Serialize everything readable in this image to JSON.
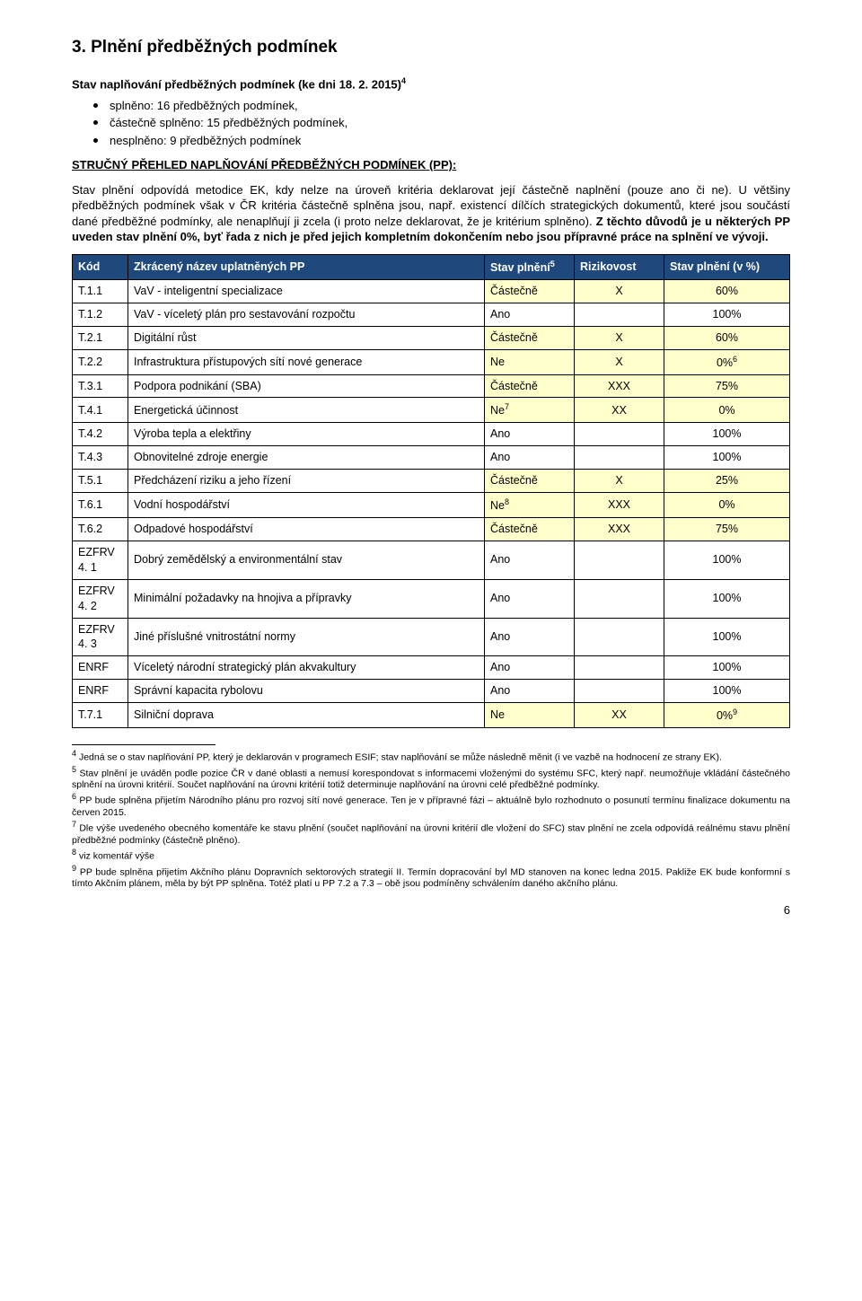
{
  "section": {
    "heading": "3. Plnění předběžných podmínek",
    "subheading_prefix": "Stav naplňování předběžných podmínek (ke dni 18. 2. 2015)",
    "subheading_sup": "4",
    "bullets": [
      "splněno: 16 předběžných podmínek,",
      "částečně splněno: 15 předběžných podmínek,",
      "nesplněno: 9 předběžných podmínek"
    ],
    "overview_title": "STRUČNÝ PŘEHLED NAPLŇOVÁNÍ PŘEDBĚŽNÝCH PODMÍNEK (PP):",
    "para1": "Stav plnění odpovídá metodice EK, kdy nelze na úroveň kritéria deklarovat její částečně naplnění (pouze ano či ne). U většiny předběžných podmínek však v ČR kritéria částečně splněna jsou, např. existencí dílčích strategických dokumentů, které jsou součástí dané předběžné podmínky, ale nenaplňují ji zcela (i proto nelze deklarovat, že je kritérium splněno). ",
    "para1_bold": "Z těchto důvodů je u některých PP uveden stav plnění 0%, byť řada z nich je před jejich kompletním dokončením nebo jsou přípravné práce na splnění ve vývoji."
  },
  "table": {
    "headers": {
      "code": "Kód",
      "name": "Zkrácený název uplatněných PP",
      "status": "Stav plnění",
      "status_sup": "5",
      "risk": "Rizikovost",
      "pct": "Stav plnění (v %)"
    },
    "rows": [
      {
        "code": "T.1.1",
        "name": "VaV - inteligentní specializace",
        "status": "Částečně",
        "risk": "X",
        "pct": "60%",
        "yellow": true
      },
      {
        "code": "T.1.2",
        "name": "VaV - víceletý plán pro sestavování rozpočtu",
        "status": "Ano",
        "risk": "",
        "pct": "100%",
        "yellow": false
      },
      {
        "code": "T.2.1",
        "name": "Digitální růst",
        "status": "Částečně",
        "risk": "X",
        "pct": "60%",
        "yellow": true
      },
      {
        "code": "T.2.2",
        "name": "Infrastruktura přístupových sítí nové generace",
        "status": "Ne",
        "risk": "X",
        "pct": "0%",
        "pct_sup": "6",
        "yellow": true
      },
      {
        "code": "T.3.1",
        "name": "Podpora podnikání (SBA)",
        "status": "Částečně",
        "risk": "XXX",
        "pct": "75%",
        "yellow": true
      },
      {
        "code": "T.4.1",
        "name": "Energetická účinnost",
        "status": "Ne",
        "status_sup": "7",
        "risk": "XX",
        "pct": "0%",
        "yellow": true
      },
      {
        "code": "T.4.2",
        "name": "Výroba tepla a elektřiny",
        "status": "Ano",
        "risk": "",
        "pct": "100%",
        "yellow": false
      },
      {
        "code": "T.4.3",
        "name": "Obnovitelné zdroje energie",
        "status": "Ano",
        "risk": "",
        "pct": "100%",
        "yellow": false
      },
      {
        "code": "T.5.1",
        "name": "Předcházení riziku a jeho řízení",
        "status": "Částečně",
        "risk": "X",
        "pct": "25%",
        "yellow": true
      },
      {
        "code": "T.6.1",
        "name": "Vodní hospodářství",
        "status": "Ne",
        "status_sup": "8",
        "risk": "XXX",
        "pct": "0%",
        "yellow": true
      },
      {
        "code": "T.6.2",
        "name": "Odpadové hospodářství",
        "status": "Částečně",
        "risk": "XXX",
        "pct": "75%",
        "yellow": true
      },
      {
        "code": "EZFRV 4. 1",
        "name": "Dobrý zemědělský a environmentální stav",
        "status": "Ano",
        "risk": "",
        "pct": "100%",
        "yellow": false
      },
      {
        "code": "EZFRV 4. 2",
        "name": "Minimální požadavky na hnojiva a přípravky",
        "status": "Ano",
        "risk": "",
        "pct": "100%",
        "yellow": false
      },
      {
        "code": "EZFRV 4. 3",
        "name": "Jiné příslušné vnitrostátní normy",
        "status": "Ano",
        "risk": "",
        "pct": "100%",
        "yellow": false
      },
      {
        "code": "ENRF",
        "name": "Víceletý národní strategický plán akvakultury",
        "status": "Ano",
        "risk": "",
        "pct": "100%",
        "yellow": false
      },
      {
        "code": "ENRF",
        "name": "Správní kapacita rybolovu",
        "status": "Ano",
        "risk": "",
        "pct": "100%",
        "yellow": false
      },
      {
        "code": "T.7.1",
        "name": "Silniční doprava",
        "status": "Ne",
        "risk": "XX",
        "pct": "0%",
        "pct_sup": "9",
        "yellow": true
      }
    ]
  },
  "footnotes": {
    "f4": "Jedná se o stav naplňování PP, který je deklarován v programech ESIF; stav naplňování se může následně měnit (i ve vazbě na hodnocení ze strany EK).",
    "f5": "Stav plnění je uváděn podle pozice ČR v dané oblasti a nemusí korespondovat s informacemi vloženými do systému SFC, který např. neumožňuje vkládání částečného splnění na úrovni kritérií. Součet naplňování na úrovni kritérií totiž determinuje naplňování na úrovni celé předběžné podmínky.",
    "f6": "PP bude splněna přijetím Národního plánu pro rozvoj sítí nové generace. Ten je v přípravné fázi – aktuálně bylo rozhodnuto o posunutí termínu finalizace dokumentu na červen 2015.",
    "f7": "Dle výše uvedeného obecného komentáře ke stavu plnění (součet naplňování na úrovni kritérií dle vložení do SFC) stav plnění ne zcela odpovídá reálnému stavu plnění předběžné podmínky (částečně plněno).",
    "f8": "viz komentář výše",
    "f9": "PP bude splněna přijetím Akčního plánu Dopravních sektorových strategií II. Termín dopracování byl MD stanoven na konec ledna 2015. Pakliže EK bude konformní s tímto Akčním plánem, měla by být PP splněna. Totéž platí u PP 7.2 a 7.3 – obě jsou podmíněny schválením daného akčního plánu."
  },
  "page_number": "6"
}
